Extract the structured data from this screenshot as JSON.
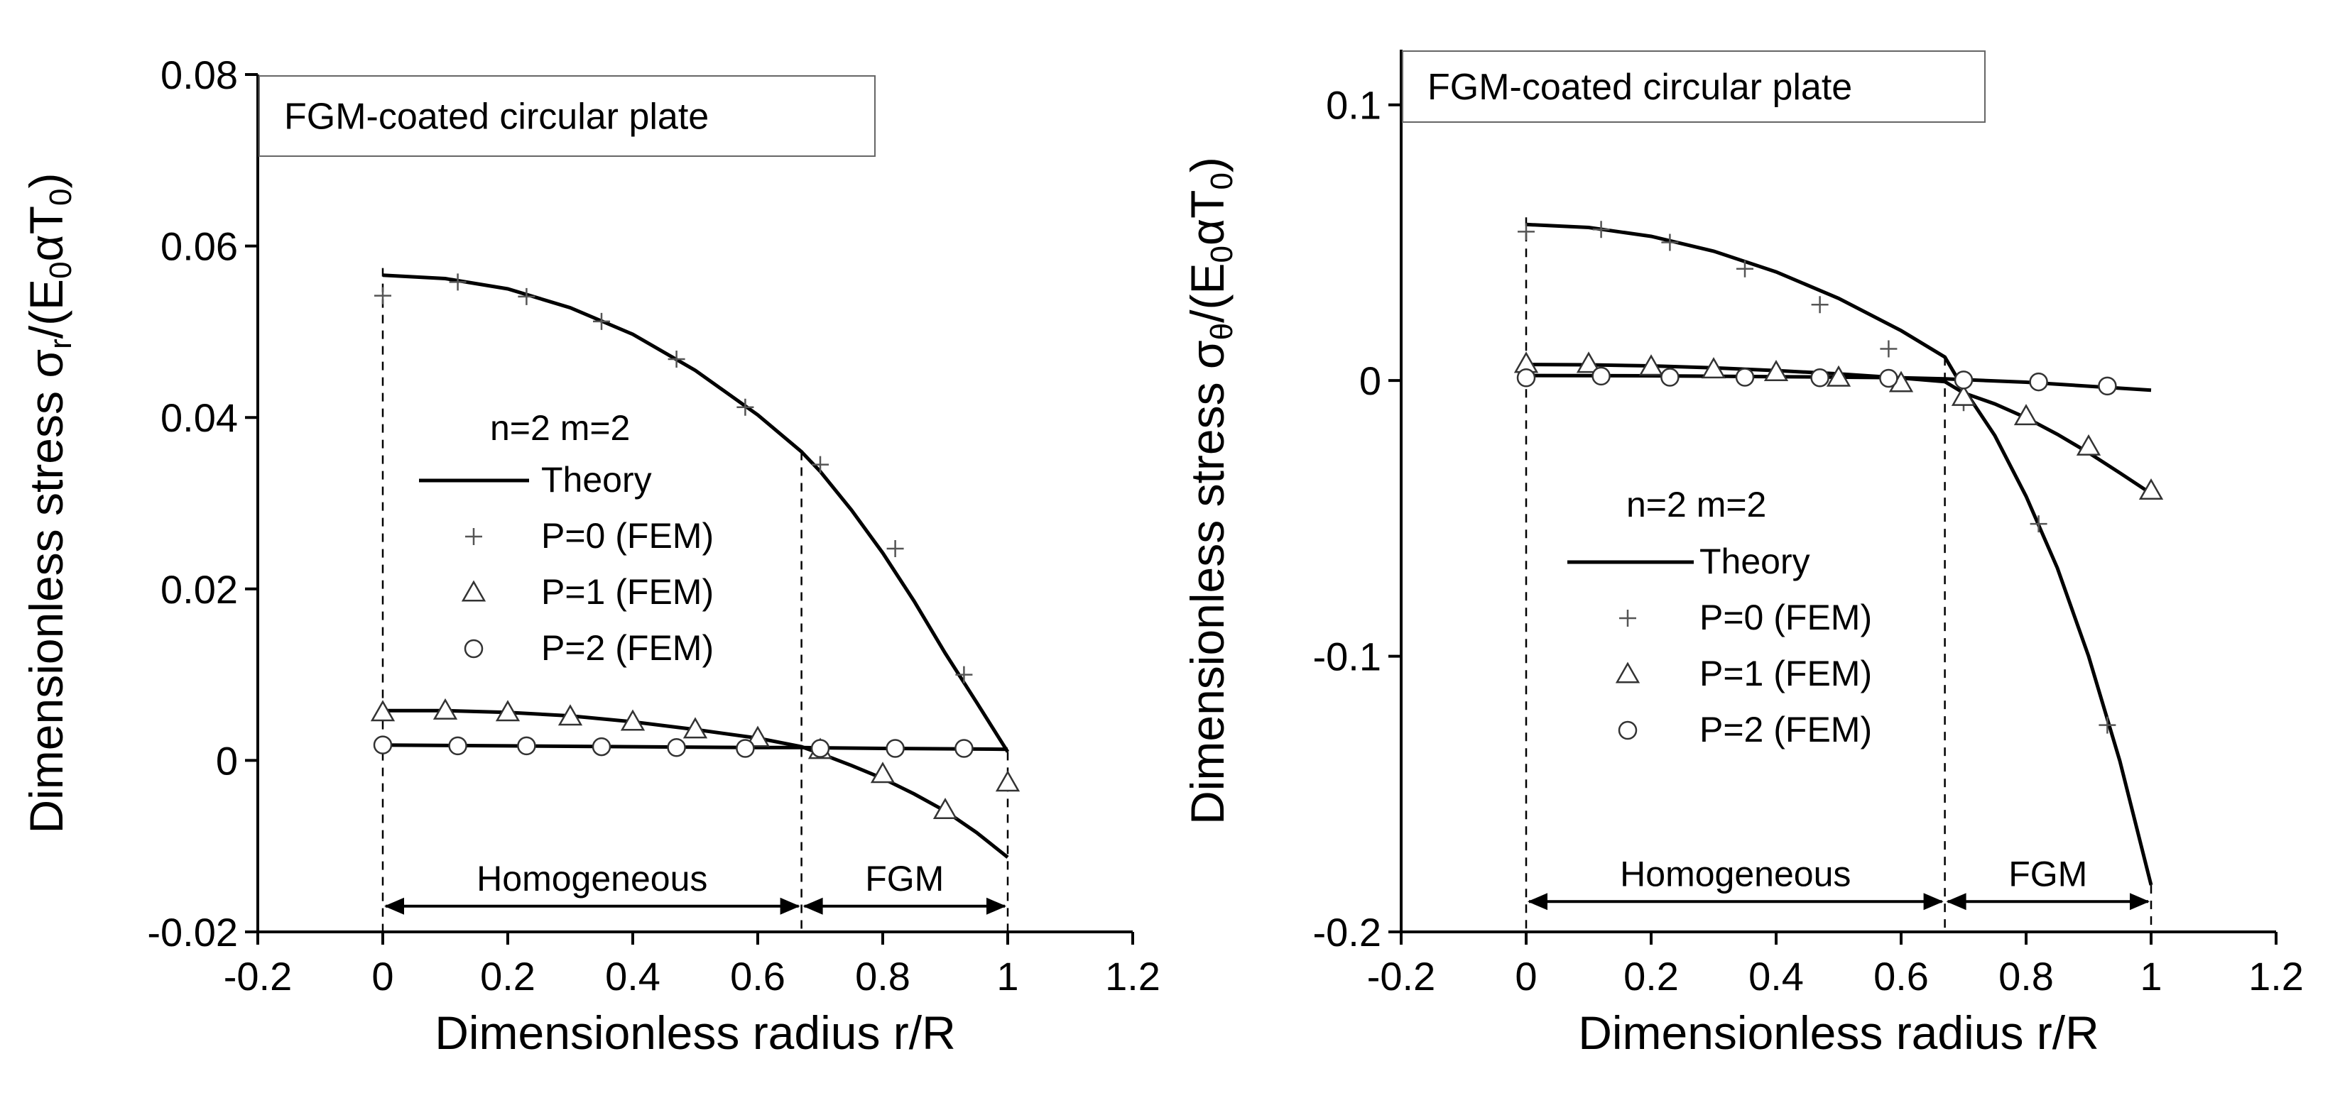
{
  "colors": {
    "ink": "#000000",
    "background": "#ffffff"
  },
  "chart_data": [
    {
      "type": "line",
      "title": "FGM-coated circular  plate",
      "xlabel": "Dimensionless radius  r/R",
      "ylabel": "Dimensionless stress σr/(E0αT0)",
      "ylabel_parts": [
        "Dimensionless stress ",
        "σ",
        "r",
        "/(E",
        "0",
        "αT",
        "0",
        ")"
      ],
      "xlim": [
        -0.2,
        1.2
      ],
      "ylim": [
        -0.02,
        0.08
      ],
      "xticks": [
        -0.2,
        0,
        0.2,
        0.4,
        0.6,
        0.8,
        1,
        1.2
      ],
      "xtick_labels": [
        "-0.2",
        "0",
        "0.2",
        "0.4",
        "0.6",
        "0.8",
        "1",
        "1.2"
      ],
      "yticks": [
        -0.02,
        0,
        0.02,
        0.04,
        0.06,
        0.08
      ],
      "ytick_labels": [
        "-0.02",
        "0",
        "0.02",
        "0.04",
        "0.06",
        "0.08"
      ],
      "legend": {
        "header": "n=2  m=2",
        "entries": [
          "Theory",
          "P=0 (FEM)",
          "P=1 (FEM)",
          "P=2 (FEM)"
        ]
      },
      "regions": [
        {
          "label": "Homogeneous",
          "from": 0,
          "to": 0.67
        },
        {
          "label": "FGM",
          "from": 0.67,
          "to": 1
        }
      ],
      "region_arrow_y": -0.017,
      "boundary_lines": [
        0,
        0.67,
        1
      ],
      "theory": [
        {
          "name": "P=0",
          "x": [
            0,
            0.1,
            0.2,
            0.3,
            0.4,
            0.5,
            0.6,
            0.67,
            0.7,
            0.75,
            0.8,
            0.85,
            0.9,
            0.95,
            1
          ],
          "y": [
            0.0566,
            0.0562,
            0.055,
            0.0528,
            0.0497,
            0.0455,
            0.0403,
            0.036,
            0.0337,
            0.0292,
            0.0242,
            0.0186,
            0.0125,
            0.0068,
            0.001
          ]
        },
        {
          "name": "P=1",
          "x": [
            0,
            0.1,
            0.2,
            0.3,
            0.4,
            0.5,
            0.6,
            0.67,
            0.7,
            0.75,
            0.8,
            0.85,
            0.9,
            0.95,
            1
          ],
          "y": [
            0.0058,
            0.0058,
            0.0056,
            0.0052,
            0.0045,
            0.0036,
            0.0026,
            0.0016,
            0.0008,
            -0.0006,
            -0.0021,
            -0.0039,
            -0.0059,
            -0.0084,
            -0.0113
          ]
        },
        {
          "name": "P=2",
          "x": [
            0,
            0.2,
            0.4,
            0.6,
            0.67,
            0.8,
            1
          ],
          "y": [
            0.0018,
            0.0017,
            0.0016,
            0.0015,
            0.0015,
            0.0014,
            0.0013
          ]
        }
      ],
      "fem": [
        {
          "name": "P=0 (FEM)",
          "marker": "plus",
          "x": [
            0,
            0.12,
            0.23,
            0.35,
            0.47,
            0.58,
            0.7,
            0.82,
            0.93
          ],
          "y": [
            0.0542,
            0.0558,
            0.0541,
            0.0512,
            0.0468,
            0.0412,
            0.0345,
            0.0247,
            0.01
          ]
        },
        {
          "name": "P=1 (FEM)",
          "marker": "triangle",
          "x": [
            0,
            0.1,
            0.2,
            0.3,
            0.4,
            0.5,
            0.6,
            0.7,
            0.8,
            0.9,
            1
          ],
          "y": [
            0.0056,
            0.0058,
            0.0056,
            0.0051,
            0.0045,
            0.0036,
            0.0026,
            0.0012,
            -0.0016,
            -0.0058,
            -0.0026
          ]
        },
        {
          "name": "P=2 (FEM)",
          "marker": "circle",
          "x": [
            0,
            0.12,
            0.23,
            0.35,
            0.47,
            0.58,
            0.7,
            0.82,
            0.93
          ],
          "y": [
            0.0018,
            0.0017,
            0.0017,
            0.0016,
            0.0015,
            0.0014,
            0.0014,
            0.0014,
            0.0014
          ]
        }
      ]
    },
    {
      "type": "line",
      "title": "FGM-coated circular plate",
      "xlabel": "Dimensionless radius  r/R",
      "ylabel": "Dimensionless stress σθ/(E0αT0)",
      "ylabel_parts": [
        "Dimensionless stress ",
        "σ",
        "θ",
        "/(E",
        "0",
        "αT",
        "0",
        ")"
      ],
      "xlim": [
        -0.2,
        1.2
      ],
      "ylim": [
        -0.2,
        0.12
      ],
      "xticks": [
        -0.2,
        0,
        0.2,
        0.4,
        0.6,
        0.8,
        1,
        1.2
      ],
      "xtick_labels": [
        "-0.2",
        "0",
        "0.2",
        "0.4",
        "0.6",
        "0.8",
        "1",
        "1.2"
      ],
      "yticks": [
        -0.2,
        -0.1,
        0,
        0.1
      ],
      "ytick_labels": [
        "-0.2",
        "-0.1",
        "0",
        "0.1"
      ],
      "legend": {
        "header": "n=2  m=2",
        "entries": [
          "Theory",
          "P=0 (FEM)",
          "P=1 (FEM)",
          "P=2 (FEM)"
        ]
      },
      "regions": [
        {
          "label": "Homogeneous",
          "from": 0,
          "to": 0.67
        },
        {
          "label": "FGM",
          "from": 0.67,
          "to": 1
        }
      ],
      "region_arrow_y": -0.189,
      "boundary_lines": [
        0,
        0.67,
        1
      ],
      "theory": [
        {
          "name": "P=0",
          "x": [
            0,
            0.1,
            0.2,
            0.3,
            0.4,
            0.5,
            0.6,
            0.67,
            0.7,
            0.75,
            0.8,
            0.85,
            0.9,
            0.95,
            1
          ],
          "y": [
            0.0566,
            0.0555,
            0.0523,
            0.0469,
            0.0394,
            0.0298,
            0.0181,
            0.0085,
            -0.003,
            -0.02,
            -0.042,
            -0.068,
            -0.1,
            -0.138,
            -0.183
          ]
        },
        {
          "name": "P=1",
          "x": [
            0,
            0.1,
            0.2,
            0.3,
            0.4,
            0.5,
            0.6,
            0.67,
            0.7,
            0.75,
            0.8,
            0.85,
            0.9,
            0.95,
            1
          ],
          "y": [
            0.0058,
            0.0057,
            0.0053,
            0.0046,
            0.0036,
            0.0024,
            0.0009,
            -0.0004,
            -0.0045,
            -0.0085,
            -0.0135,
            -0.0195,
            -0.0262,
            -0.0335,
            -0.041
          ]
        },
        {
          "name": "P=2",
          "x": [
            0,
            0.2,
            0.4,
            0.6,
            0.67,
            0.8,
            1
          ],
          "y": [
            0.0018,
            0.0017,
            0.0014,
            0.001,
            0.0006,
            -0.0006,
            -0.0035
          ]
        }
      ],
      "fem": [
        {
          "name": "P=0 (FEM)",
          "marker": "plus",
          "x": [
            0,
            0.12,
            0.23,
            0.35,
            0.47,
            0.58,
            0.7,
            0.82,
            0.93
          ],
          "y": [
            0.054,
            0.0548,
            0.0501,
            0.0405,
            0.0275,
            0.0115,
            -0.008,
            -0.052,
            -0.125
          ]
        },
        {
          "name": "P=1 (FEM)",
          "marker": "triangle",
          "x": [
            0,
            0.1,
            0.2,
            0.3,
            0.4,
            0.5,
            0.6,
            0.7,
            0.8,
            0.9,
            1
          ],
          "y": [
            0.006,
            0.006,
            0.005,
            0.004,
            0.003,
            0.001,
            -0.001,
            -0.006,
            -0.013,
            -0.024,
            -0.04
          ]
        },
        {
          "name": "P=2 (FEM)",
          "marker": "circle",
          "x": [
            0,
            0.12,
            0.23,
            0.35,
            0.47,
            0.58,
            0.7,
            0.82,
            0.93
          ],
          "y": [
            0.001,
            0.0016,
            0.0012,
            0.0012,
            0.001,
            0.0008,
            0.0002,
            -0.0005,
            -0.002
          ]
        }
      ]
    }
  ]
}
